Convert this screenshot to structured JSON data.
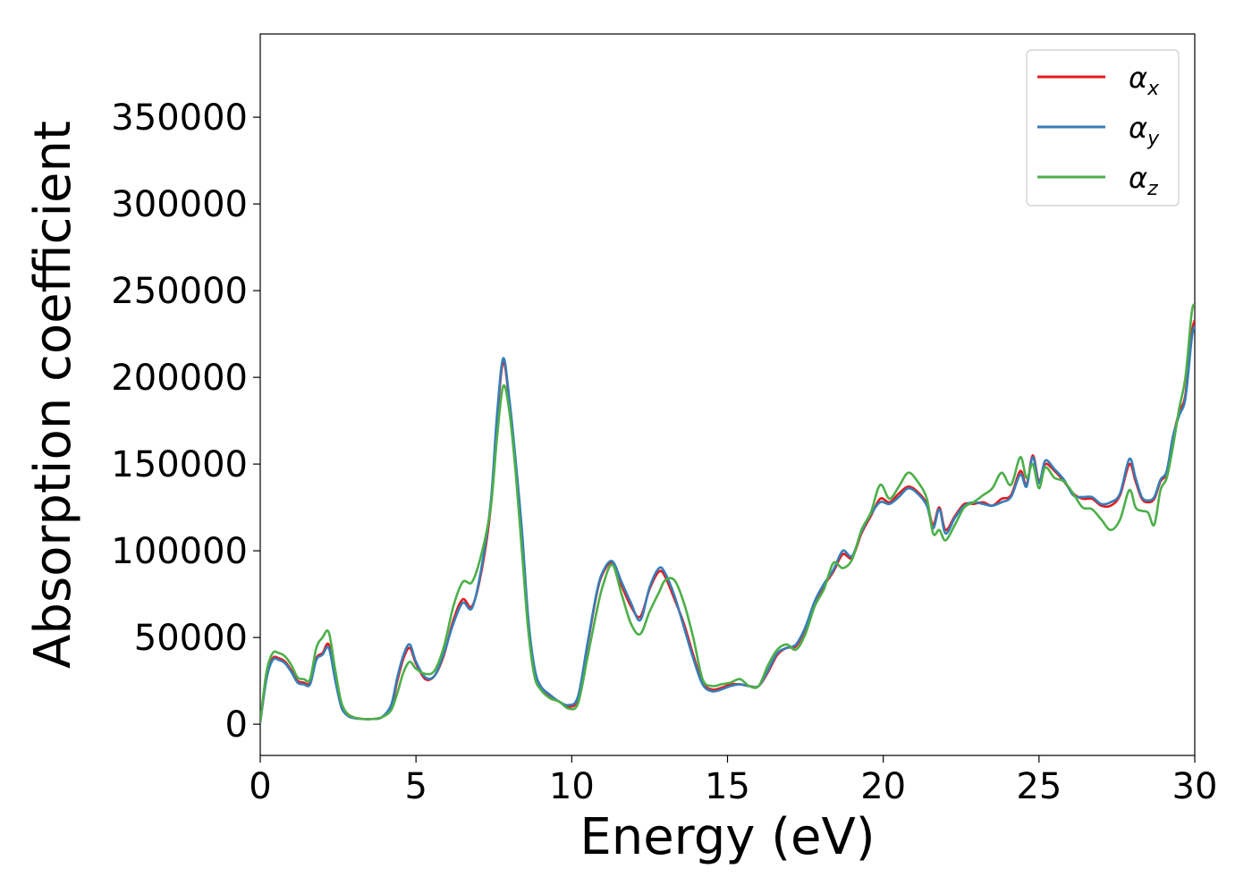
{
  "chart_data": {
    "type": "line",
    "xlabel": "Energy (eV)",
    "ylabel": "Absorption coefficient",
    "xlim": [
      0,
      30
    ],
    "ylim": [
      -18000,
      398000
    ],
    "xticks": [
      0,
      5,
      10,
      15,
      20,
      25,
      30
    ],
    "xtick_labels": [
      "0",
      "5",
      "10",
      "15",
      "20",
      "25",
      "30"
    ],
    "yticks": [
      0,
      50000,
      100000,
      150000,
      200000,
      250000,
      300000,
      350000
    ],
    "ytick_labels": [
      "0",
      "50000",
      "100000",
      "150000",
      "200000",
      "250000",
      "300000",
      "350000"
    ],
    "grid": false,
    "legend_position": "top-right",
    "x": [
      0,
      0.2,
      0.4,
      0.6,
      0.8,
      1.0,
      1.2,
      1.4,
      1.6,
      1.8,
      2.0,
      2.2,
      2.4,
      2.6,
      2.8,
      3.0,
      3.3,
      3.6,
      3.9,
      4.2,
      4.4,
      4.6,
      4.8,
      5.0,
      5.3,
      5.6,
      5.9,
      6.2,
      6.5,
      6.8,
      7.1,
      7.4,
      7.6,
      7.8,
      8.0,
      8.2,
      8.4,
      8.6,
      8.8,
      9.0,
      9.3,
      9.6,
      9.9,
      10.2,
      10.5,
      10.8,
      11.0,
      11.3,
      11.6,
      11.9,
      12.2,
      12.5,
      12.8,
      13.0,
      13.3,
      13.6,
      13.9,
      14.2,
      14.5,
      14.8,
      15.1,
      15.4,
      15.7,
      16.0,
      16.3,
      16.6,
      16.9,
      17.2,
      17.5,
      17.8,
      18.1,
      18.4,
      18.7,
      19.0,
      19.3,
      19.6,
      19.9,
      20.2,
      20.5,
      20.8,
      21.1,
      21.4,
      21.6,
      21.8,
      22.0,
      22.3,
      22.6,
      22.9,
      23.2,
      23.5,
      23.8,
      24.1,
      24.4,
      24.6,
      24.8,
      25.0,
      25.2,
      25.5,
      25.8,
      26.1,
      26.4,
      26.7,
      27.0,
      27.3,
      27.6,
      27.9,
      28.1,
      28.3,
      28.5,
      28.7,
      28.9,
      29.1,
      29.3,
      29.5,
      29.7,
      29.9,
      30.0
    ],
    "series": [
      {
        "name": "x",
        "color": "#e41a1c",
        "values": [
          1000,
          27000,
          38000,
          38000,
          36000,
          31000,
          25000,
          24000,
          24000,
          38000,
          41000,
          46000,
          28000,
          11000,
          6000,
          4000,
          3000,
          3000,
          4000,
          10000,
          25000,
          38000,
          44000,
          35000,
          26000,
          28000,
          40000,
          60000,
          72000,
          68000,
          88000,
          125000,
          175000,
          209000,
          185000,
          150000,
          110000,
          60000,
          32000,
          22000,
          16000,
          13000,
          10000,
          15000,
          45000,
          75000,
          87000,
          93000,
          80000,
          68000,
          62000,
          78000,
          88000,
          85000,
          72000,
          58000,
          40000,
          24000,
          20000,
          21000,
          23000,
          23000,
          22000,
          22000,
          30000,
          40000,
          44000,
          45000,
          55000,
          70000,
          80000,
          88000,
          98000,
          96000,
          110000,
          120000,
          130000,
          128000,
          133000,
          137000,
          134000,
          127000,
          115000,
          125000,
          112000,
          120000,
          127000,
          127000,
          128000,
          126000,
          130000,
          132000,
          146000,
          138000,
          155000,
          140000,
          150000,
          146000,
          140000,
          133000,
          130000,
          130000,
          126000,
          126000,
          132000,
          150000,
          140000,
          130000,
          128000,
          130000,
          140000,
          145000,
          165000,
          180000,
          190000,
          225000,
          233000
        ]
      },
      {
        "name": "y",
        "color": "#377eb8",
        "values": [
          1000,
          26000,
          37000,
          37000,
          35000,
          30000,
          24000,
          23000,
          23000,
          37000,
          40000,
          44000,
          26000,
          10000,
          5000,
          3500,
          3000,
          3000,
          4000,
          11000,
          27000,
          40000,
          46000,
          36000,
          27000,
          28000,
          41000,
          58000,
          70000,
          67000,
          90000,
          128000,
          178000,
          211000,
          187000,
          152000,
          112000,
          62000,
          33000,
          22000,
          17000,
          13000,
          11000,
          16000,
          46000,
          76000,
          88000,
          94000,
          82000,
          70000,
          60000,
          79000,
          90000,
          87000,
          74000,
          56000,
          38000,
          23000,
          19000,
          20000,
          22000,
          23000,
          22000,
          22000,
          31000,
          41000,
          44000,
          46000,
          56000,
          71000,
          81000,
          89000,
          100000,
          97000,
          111000,
          121000,
          128000,
          127000,
          131000,
          136000,
          133000,
          126000,
          113000,
          124000,
          110000,
          119000,
          126000,
          128000,
          127000,
          126000,
          128000,
          131000,
          144000,
          137000,
          154000,
          139000,
          152000,
          147000,
          141000,
          132000,
          131000,
          131000,
          127000,
          128000,
          133000,
          153000,
          142000,
          131000,
          129000,
          131000,
          141000,
          146000,
          166000,
          178000,
          188000,
          222000,
          230000
        ]
      },
      {
        "name": "z",
        "color": "#4daf4a",
        "values": [
          1000,
          30000,
          41000,
          41000,
          39000,
          34000,
          27000,
          26000,
          26000,
          44000,
          50000,
          53000,
          32000,
          13000,
          6000,
          4000,
          3000,
          3000,
          4000,
          8000,
          18000,
          30000,
          36000,
          32000,
          29000,
          31000,
          45000,
          68000,
          82000,
          82000,
          98000,
          125000,
          165000,
          195000,
          180000,
          145000,
          100000,
          55000,
          28000,
          20000,
          15000,
          13000,
          9000,
          12000,
          38000,
          65000,
          80000,
          92000,
          75000,
          58000,
          52000,
          65000,
          76000,
          83000,
          83000,
          70000,
          50000,
          26000,
          22000,
          23000,
          24000,
          26000,
          22000,
          22000,
          34000,
          43000,
          46000,
          43000,
          52000,
          68000,
          78000,
          93000,
          90000,
          95000,
          112000,
          122000,
          138000,
          130000,
          137000,
          145000,
          140000,
          130000,
          110000,
          112000,
          106000,
          115000,
          125000,
          128000,
          132000,
          136000,
          145000,
          138000,
          154000,
          142000,
          150000,
          136000,
          148000,
          142000,
          140000,
          133000,
          125000,
          124000,
          118000,
          112000,
          118000,
          135000,
          125000,
          123000,
          122000,
          115000,
          135000,
          142000,
          160000,
          182000,
          200000,
          237000,
          242000
        ]
      }
    ]
  }
}
